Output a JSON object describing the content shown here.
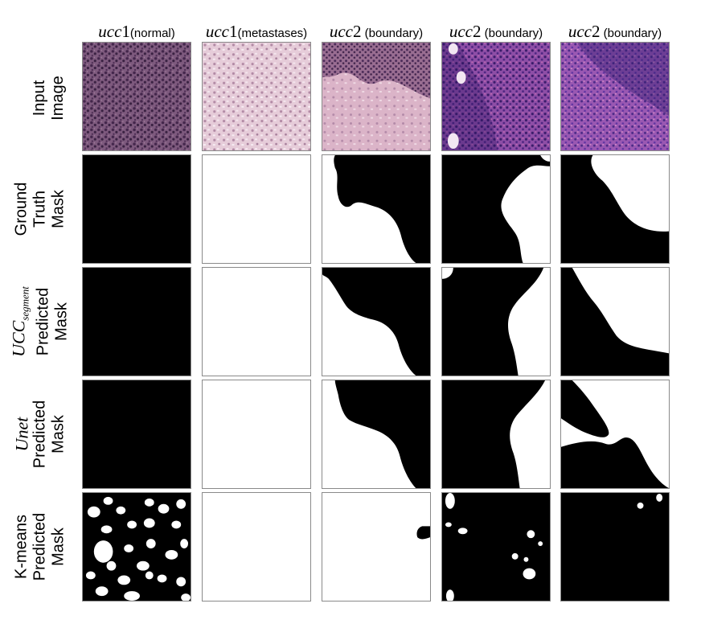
{
  "columns": [
    {
      "math": "ucc",
      "digit": "1",
      "label": "(normal)"
    },
    {
      "math": "ucc",
      "digit": "1",
      "label": "(metastases)"
    },
    {
      "math": "ucc",
      "digit": "2",
      "label": " (boundary)"
    },
    {
      "math": "ucc",
      "digit": "2",
      "label": " (boundary)"
    },
    {
      "math": "ucc",
      "digit": "2",
      "label": " (boundary)"
    }
  ],
  "rows": [
    {
      "line1": "Input",
      "line2": "Image"
    },
    {
      "line1": "Ground",
      "line2": "Truth",
      "line3": "Mask"
    },
    {
      "math": "UCC",
      "math_sub": "segment",
      "line2": "Predicted",
      "line3": "Mask"
    },
    {
      "math": "Unet",
      "line2": "Predicted",
      "line3": "Mask"
    },
    {
      "line1": "K-means",
      "line2": "Predicted",
      "line3": "Mask"
    }
  ],
  "colors": {
    "mask_foreground": "#000000",
    "mask_background": "#ffffff",
    "normal_tissue": "#5a3a5e",
    "metastases_tissue": "#e2c6d3",
    "boundary_tissue_light": "#d9b3c8",
    "boundary_tissue_dark": "#7a3f84",
    "boundary_tissue_purple": "#8e4ea6"
  }
}
